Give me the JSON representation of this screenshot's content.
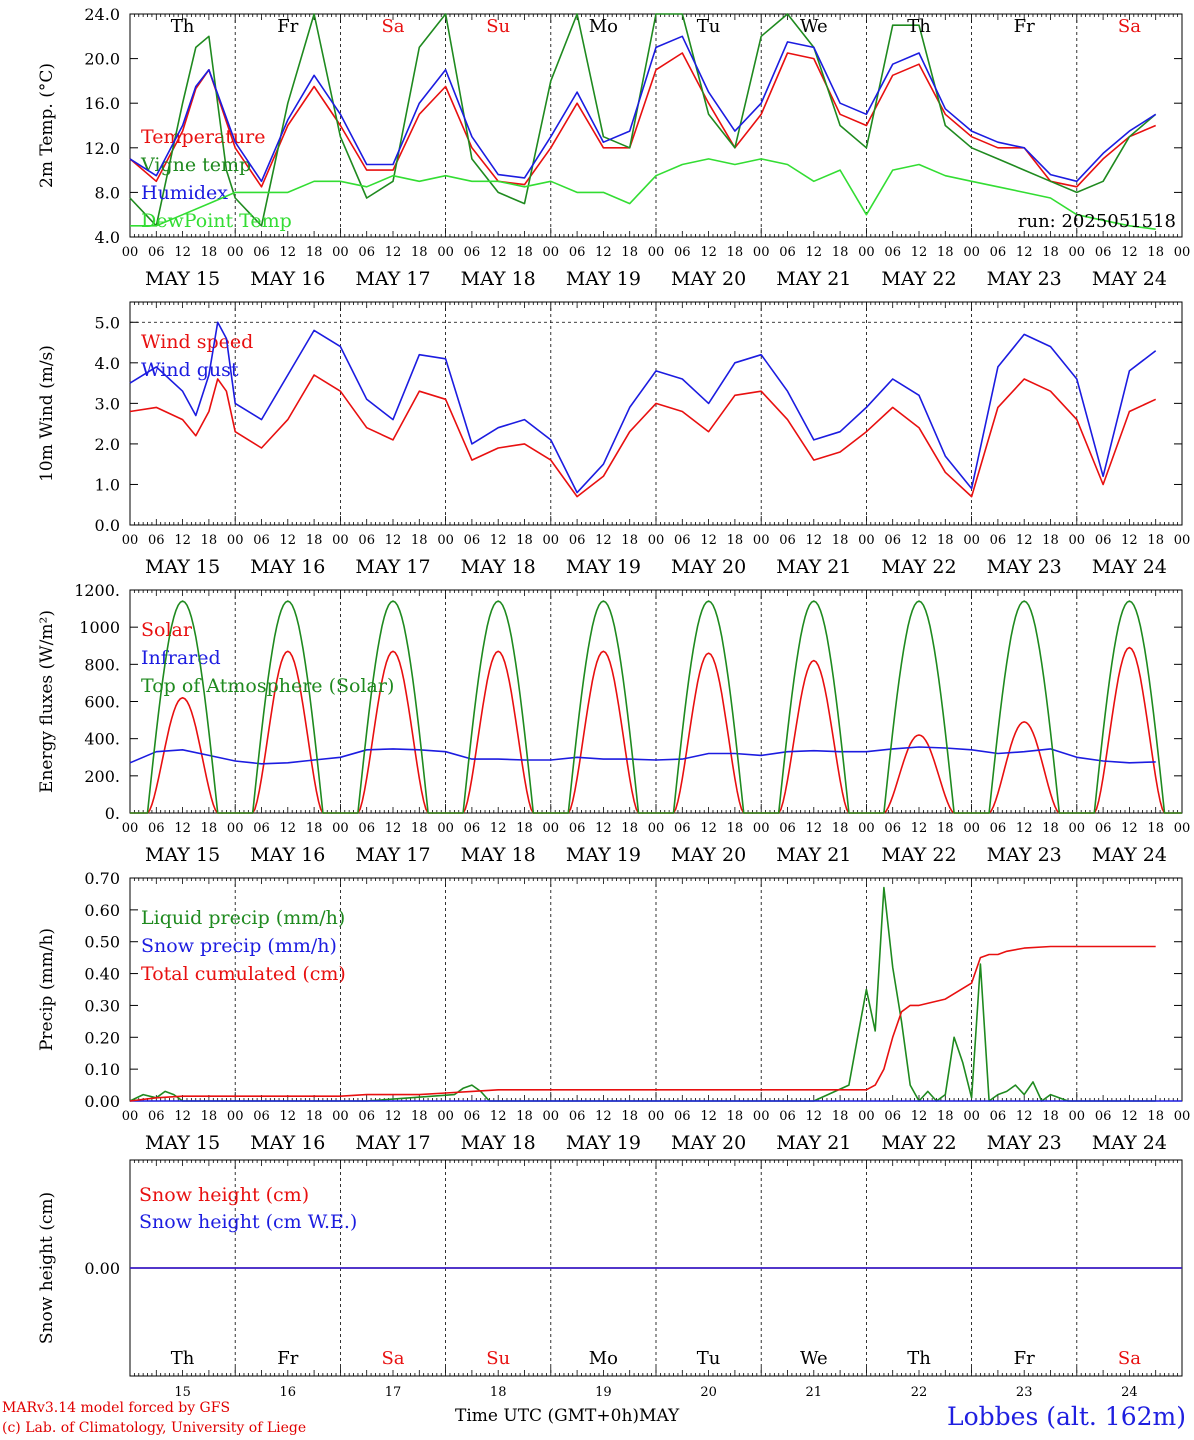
{
  "colors": {
    "red": "#e81010",
    "green": "#1f8a1f",
    "blue": "#1c1ce0",
    "light_green": "#33dd33",
    "weekend": "#e81010",
    "text": "#000000"
  },
  "date_labels": [
    "MAY 15",
    "MAY 16",
    "MAY 17",
    "MAY 18",
    "MAY 19",
    "MAY 20",
    "MAY 21",
    "MAY 22",
    "MAY 23",
    "MAY 24"
  ],
  "hour_labels": [
    "00",
    "06",
    "12",
    "18"
  ],
  "hour_end_label": "00",
  "weekdays": [
    {
      "label": "Th",
      "weekend": false
    },
    {
      "label": "Fr",
      "weekend": false
    },
    {
      "label": "Sa",
      "weekend": true
    },
    {
      "label": "Su",
      "weekend": true
    },
    {
      "label": "Mo",
      "weekend": false
    },
    {
      "label": "Tu",
      "weekend": false
    },
    {
      "label": "We",
      "weekend": false
    },
    {
      "label": "Th",
      "weekend": false
    },
    {
      "label": "Fr",
      "weekend": false
    },
    {
      "label": "Sa",
      "weekend": true
    }
  ],
  "day_numbers": [
    "15",
    "16",
    "17",
    "18",
    "19",
    "20",
    "21",
    "22",
    "23",
    "24"
  ],
  "footer": {
    "model_line": "MARv3.14 model forced by GFS",
    "credit_line": "(c) Lab. of Climatology, University of Liege",
    "axis_caption": "Time UTC (GMT+0h)",
    "month": "MAY",
    "station": "Lobbes (alt. 162m)"
  },
  "chart_data": [
    {
      "type": "line",
      "ylabel": "2m Temp. (°C)",
      "ylim": [
        4,
        24
      ],
      "yticks": [
        4,
        8,
        12,
        16,
        20,
        24
      ],
      "tick_format": "fixed1",
      "annotation": "run: 2025051518",
      "x_unit": "hours since MAY 15 00 UTC",
      "series": [
        {
          "name": "Temperature",
          "color": "red",
          "x": [
            0,
            6,
            12,
            15,
            18,
            24,
            30,
            36,
            42,
            48,
            54,
            60,
            66,
            72,
            78,
            84,
            90,
            96,
            102,
            108,
            114,
            120,
            126,
            132,
            138,
            144,
            150,
            156,
            162,
            168,
            174,
            180,
            186,
            192,
            198,
            204,
            210,
            216,
            222,
            228,
            234
          ],
          "y": [
            11,
            9,
            13.5,
            17.3,
            19,
            12,
            8.5,
            14,
            17.5,
            14,
            10,
            10,
            15,
            17.5,
            12,
            9,
            8.7,
            12,
            16,
            12,
            12,
            19,
            20.5,
            16,
            12,
            15,
            20.5,
            20,
            15,
            14,
            18.5,
            19.5,
            15,
            13,
            12,
            12,
            9,
            8.5,
            11,
            13,
            14
          ]
        },
        {
          "name": "Vigne temp",
          "color": "green",
          "x": [
            0,
            6,
            12,
            15,
            18,
            22,
            24,
            30,
            36,
            42,
            48,
            54,
            60,
            66,
            72,
            78,
            84,
            90,
            96,
            102,
            108,
            114,
            120,
            126,
            132,
            138,
            144,
            150,
            156,
            162,
            168,
            174,
            180,
            186,
            192,
            198,
            204,
            210,
            216,
            222,
            228,
            234
          ],
          "y": [
            7.5,
            5,
            16,
            21,
            22,
            10,
            7.5,
            5,
            16,
            24,
            13,
            7.5,
            9,
            21,
            25,
            11,
            8,
            7,
            18,
            24,
            13,
            12,
            24,
            24,
            15,
            12,
            22,
            24,
            21,
            14,
            12,
            23,
            23,
            14,
            12,
            11,
            10,
            9,
            8,
            9,
            13,
            15
          ]
        },
        {
          "name": "Humidex",
          "color": "blue",
          "x": [
            0,
            6,
            12,
            15,
            18,
            24,
            30,
            36,
            42,
            48,
            54,
            60,
            66,
            72,
            78,
            84,
            90,
            96,
            102,
            108,
            114,
            120,
            126,
            132,
            138,
            144,
            150,
            156,
            162,
            168,
            174,
            180,
            186,
            192,
            198,
            204,
            210,
            216,
            222,
            228,
            234
          ],
          "y": [
            11,
            9.5,
            14,
            17.5,
            19,
            12.5,
            9,
            14.5,
            18.5,
            15,
            10.5,
            10.5,
            16,
            19,
            13,
            9.6,
            9.3,
            13,
            17,
            12.5,
            13.5,
            21,
            22,
            17,
            13.5,
            16,
            21.5,
            21,
            16,
            15,
            19.5,
            20.5,
            15.5,
            13.5,
            12.5,
            12,
            9.6,
            9,
            11.5,
            13.5,
            15
          ]
        },
        {
          "name": "DewPoint Temp",
          "color": "light_green",
          "x": [
            0,
            6,
            12,
            18,
            24,
            30,
            36,
            42,
            48,
            54,
            60,
            66,
            72,
            78,
            84,
            90,
            96,
            102,
            108,
            114,
            120,
            126,
            132,
            138,
            144,
            150,
            156,
            162,
            168,
            174,
            180,
            186,
            192,
            198,
            204,
            210,
            216,
            222,
            228,
            234
          ],
          "y": [
            5,
            5,
            6,
            7,
            8,
            8,
            8,
            9,
            9,
            8.5,
            9.5,
            9,
            9.5,
            9,
            9,
            8.5,
            9,
            8,
            8,
            7,
            9.5,
            10.5,
            11,
            10.5,
            11,
            10.5,
            9,
            10,
            6,
            10,
            10.5,
            9.5,
            9,
            8.5,
            8,
            7.5,
            6,
            5.5,
            5,
            4.7
          ]
        }
      ]
    },
    {
      "type": "line",
      "ylabel": "10m Wind (m/s)",
      "ylim": [
        0,
        5.5
      ],
      "yticks": [
        0,
        1,
        2,
        3,
        4,
        5
      ],
      "tick_format": "fixed1",
      "reference_line": 5.0,
      "x_unit": "hours since MAY 15 00 UTC",
      "series": [
        {
          "name": "Wind speed",
          "color": "red",
          "x": [
            0,
            6,
            12,
            15,
            18,
            20,
            22,
            24,
            30,
            36,
            42,
            48,
            54,
            60,
            66,
            72,
            78,
            84,
            90,
            96,
            102,
            108,
            114,
            120,
            126,
            132,
            138,
            144,
            150,
            156,
            162,
            168,
            174,
            180,
            186,
            192,
            198,
            204,
            210,
            216,
            222,
            228,
            234
          ],
          "y": [
            2.8,
            2.9,
            2.6,
            2.2,
            2.8,
            3.6,
            3.3,
            2.3,
            1.9,
            2.6,
            3.7,
            3.3,
            2.4,
            2.1,
            3.3,
            3.1,
            1.6,
            1.9,
            2.0,
            1.6,
            0.7,
            1.2,
            2.3,
            3.0,
            2.8,
            2.3,
            3.2,
            3.3,
            2.6,
            1.6,
            1.8,
            2.3,
            2.9,
            2.4,
            1.3,
            0.7,
            2.9,
            3.6,
            3.3,
            2.6,
            1.0,
            2.8,
            3.1
          ]
        },
        {
          "name": "Wind gust",
          "color": "blue",
          "x": [
            0,
            6,
            12,
            15,
            18,
            20,
            22,
            24,
            30,
            36,
            42,
            48,
            54,
            60,
            66,
            72,
            78,
            84,
            90,
            96,
            102,
            108,
            114,
            120,
            126,
            132,
            138,
            144,
            150,
            156,
            162,
            168,
            174,
            180,
            186,
            192,
            198,
            204,
            210,
            216,
            222,
            228,
            234
          ],
          "y": [
            3.5,
            3.9,
            3.3,
            2.7,
            3.7,
            5.0,
            4.6,
            3.0,
            2.6,
            3.7,
            4.8,
            4.4,
            3.1,
            2.6,
            4.2,
            4.1,
            2.0,
            2.4,
            2.6,
            2.1,
            0.8,
            1.5,
            2.9,
            3.8,
            3.6,
            3.0,
            4.0,
            4.2,
            3.3,
            2.1,
            2.3,
            2.9,
            3.6,
            3.2,
            1.7,
            0.9,
            3.9,
            4.7,
            4.4,
            3.6,
            1.2,
            3.8,
            4.3
          ]
        }
      ]
    },
    {
      "type": "line",
      "ylabel": "Energy fluxes (W/m²)",
      "ylim": [
        0,
        1200
      ],
      "yticks": [
        0,
        200,
        400,
        600,
        800,
        1000,
        1200
      ],
      "tick_format": "energy",
      "x_unit": "hours since MAY 15 00 UTC",
      "series": [
        {
          "name": "Solar",
          "color": "red",
          "daily_peaks": [
            620,
            870,
            870,
            870,
            870,
            860,
            820,
            420,
            490,
            890
          ]
        },
        {
          "name": "Infrared",
          "color": "blue",
          "x": [
            0,
            6,
            12,
            18,
            24,
            30,
            36,
            42,
            48,
            54,
            60,
            66,
            72,
            78,
            84,
            90,
            96,
            102,
            108,
            114,
            120,
            126,
            132,
            138,
            144,
            150,
            156,
            162,
            168,
            174,
            180,
            186,
            192,
            198,
            204,
            210,
            216,
            222,
            228,
            234
          ],
          "y": [
            270,
            330,
            340,
            310,
            280,
            265,
            270,
            285,
            300,
            340,
            345,
            340,
            330,
            290,
            290,
            285,
            285,
            300,
            290,
            290,
            285,
            290,
            320,
            320,
            310,
            330,
            335,
            330,
            330,
            345,
            355,
            350,
            340,
            320,
            330,
            345,
            300,
            280,
            270,
            275
          ]
        },
        {
          "name": "Top of Atmosphere (Solar)",
          "color": "green",
          "daily_peak": 1140
        }
      ]
    },
    {
      "type": "line",
      "ylabel": "Precip (mm/h)",
      "ylim": [
        0,
        0.7
      ],
      "yticks": [
        0,
        0.1,
        0.2,
        0.3,
        0.4,
        0.5,
        0.6,
        0.7
      ],
      "tick_format": "fixed2",
      "x_unit": "hours since MAY 15 00 UTC",
      "series": [
        {
          "name": "Liquid precip (mm/h)",
          "color": "green",
          "x": [
            0,
            3,
            6,
            8,
            10,
            12,
            14,
            40,
            54,
            74,
            76,
            78,
            80,
            82,
            156,
            164,
            166,
            168,
            170,
            172,
            174,
            176,
            178,
            180,
            182,
            184,
            186,
            188,
            190,
            192,
            194,
            196,
            198,
            200,
            202,
            204,
            206,
            208,
            210,
            214,
            234
          ],
          "y": [
            0,
            0.02,
            0.01,
            0.03,
            0.02,
            0,
            0,
            0,
            0,
            0.02,
            0.04,
            0.05,
            0.03,
            0,
            0,
            0.05,
            0.2,
            0.35,
            0.22,
            0.67,
            0.42,
            0.25,
            0.05,
            0,
            0.03,
            0,
            0.02,
            0.2,
            0.12,
            0.01,
            0.43,
            0,
            0.02,
            0.03,
            0.05,
            0.02,
            0.06,
            0,
            0.02,
            0,
            0
          ]
        },
        {
          "name": "Snow precip (mm/h)",
          "color": "blue",
          "x": [
            0,
            240
          ],
          "y": [
            0,
            0
          ]
        },
        {
          "name": "Total cumulated (cm)",
          "color": "red",
          "x": [
            0,
            6,
            12,
            24,
            36,
            48,
            54,
            60,
            66,
            72,
            78,
            84,
            96,
            120,
            144,
            168,
            170,
            172,
            174,
            176,
            178,
            180,
            186,
            192,
            194,
            196,
            198,
            200,
            204,
            210,
            216,
            234
          ],
          "y": [
            0,
            0.01,
            0.015,
            0.015,
            0.015,
            0.015,
            0.02,
            0.02,
            0.02,
            0.025,
            0.03,
            0.035,
            0.035,
            0.035,
            0.035,
            0.035,
            0.05,
            0.1,
            0.2,
            0.28,
            0.3,
            0.3,
            0.32,
            0.37,
            0.45,
            0.46,
            0.46,
            0.47,
            0.48,
            0.485,
            0.485,
            0.485
          ]
        }
      ]
    },
    {
      "type": "line",
      "ylabel": "Snow height (cm)",
      "ylim": [
        -1,
        1
      ],
      "yticks": [
        0
      ],
      "tick_format": "fixed2",
      "x_unit": "hours since MAY 15 00 UTC",
      "series": [
        {
          "name": "Snow height (cm)",
          "color": "red",
          "x": [
            0,
            240
          ],
          "y": [
            0,
            0
          ]
        },
        {
          "name": "Snow height (cm W.E.)",
          "color": "blue",
          "x": [
            0,
            240
          ],
          "y": [
            0,
            0
          ]
        }
      ]
    }
  ]
}
